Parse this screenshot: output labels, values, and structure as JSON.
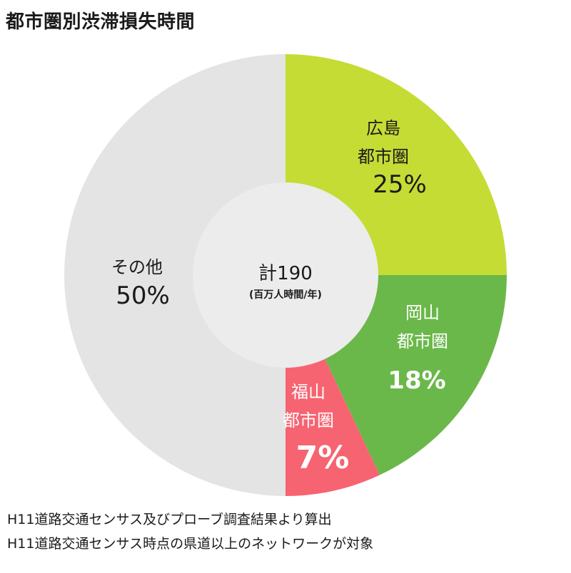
{
  "title": "都市圏別渋滞損失時間",
  "chart_data": {
    "type": "pie",
    "title": "都市圏別渋滞損失時間",
    "center_label": {
      "main": "計190",
      "sub": "(百万人時間/年)"
    },
    "slices": [
      {
        "name_lines": [
          "広島",
          "都市圏"
        ],
        "value": 25,
        "value_label": "25%",
        "color": "#c5dc35",
        "label_color": "#1a1a1a"
      },
      {
        "name_lines": [
          "岡山",
          "都市圏"
        ],
        "value": 18,
        "value_label": "18%",
        "color": "#6ab84a",
        "label_color": "#ffffff"
      },
      {
        "name_lines": [
          "福山",
          "都市圏"
        ],
        "value": 7,
        "value_label": "7%",
        "color": "#f66471",
        "label_color": "#ffffff"
      },
      {
        "name_lines": [
          "その他"
        ],
        "value": 50,
        "value_label": "50%",
        "color": "#e4e4e4",
        "label_color": "#1a1a1a"
      }
    ]
  },
  "notes": [
    "H11道路交通センサス及びプローブ調査結果より算出",
    "H11道路交通センサス時点の県道以上のネットワークが対象"
  ]
}
